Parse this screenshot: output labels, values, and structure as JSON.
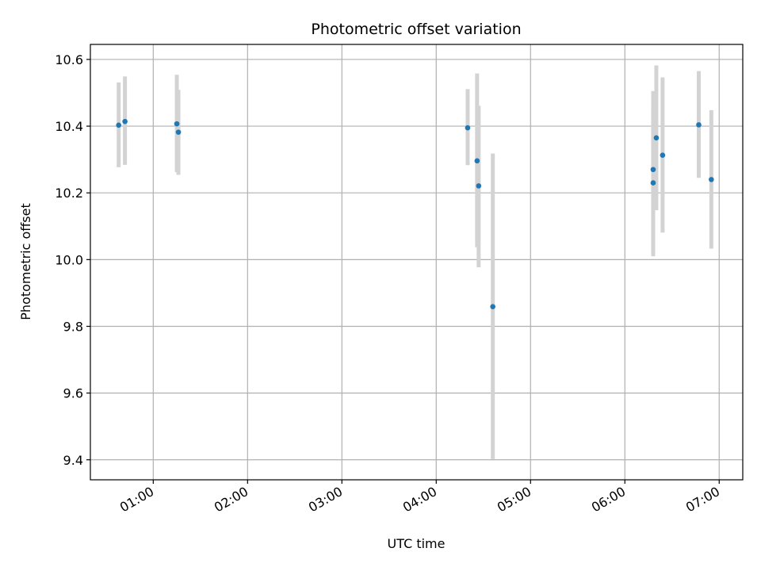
{
  "chart_data": {
    "type": "scatter",
    "title": "Photometric offset variation",
    "xlabel": "UTC time",
    "ylabel": "Photometric offset",
    "x_tick_labels": [
      "01:00",
      "02:00",
      "03:00",
      "04:00",
      "05:00",
      "06:00",
      "07:00"
    ],
    "y_tick_labels": [
      "9.4",
      "9.6",
      "9.8",
      "10.0",
      "10.2",
      "10.4",
      "10.6"
    ],
    "y_ticks": [
      9.4,
      9.6,
      9.8,
      10.0,
      10.2,
      10.4,
      10.6
    ],
    "xlim": [
      "00:20",
      "07:15"
    ],
    "ylim": [
      9.34,
      10.645
    ],
    "grid": true,
    "colors": {
      "point": "#1f77b4",
      "errorbar": "#d3d3d3",
      "grid": "#b0b0b0"
    },
    "points": [
      {
        "x": "00:38",
        "y": 10.403,
        "ylow": 10.277,
        "yhigh": 10.531
      },
      {
        "x": "00:42",
        "y": 10.414,
        "ylow": 10.284,
        "yhigh": 10.549
      },
      {
        "x": "01:15",
        "y": 10.407,
        "ylow": 10.262,
        "yhigh": 10.554
      },
      {
        "x": "01:16",
        "y": 10.382,
        "ylow": 10.254,
        "yhigh": 10.509
      },
      {
        "x": "04:20",
        "y": 10.395,
        "ylow": 10.283,
        "yhigh": 10.511
      },
      {
        "x": "04:26",
        "y": 10.296,
        "ylow": 10.037,
        "yhigh": 10.558
      },
      {
        "x": "04:27",
        "y": 10.221,
        "ylow": 9.977,
        "yhigh": 10.461
      },
      {
        "x": "04:36",
        "y": 9.859,
        "ylow": 9.402,
        "yhigh": 10.318
      },
      {
        "x": "06:18",
        "y": 10.27,
        "ylow": 10.016,
        "yhigh": 10.505
      },
      {
        "x": "06:18",
        "y": 10.23,
        "ylow": 10.01,
        "yhigh": 10.455
      },
      {
        "x": "06:20",
        "y": 10.365,
        "ylow": 10.148,
        "yhigh": 10.582
      },
      {
        "x": "06:24",
        "y": 10.313,
        "ylow": 10.081,
        "yhigh": 10.546
      },
      {
        "x": "06:47",
        "y": 10.404,
        "ylow": 10.245,
        "yhigh": 10.565
      },
      {
        "x": "06:55",
        "y": 10.24,
        "ylow": 10.033,
        "yhigh": 10.448
      }
    ]
  }
}
